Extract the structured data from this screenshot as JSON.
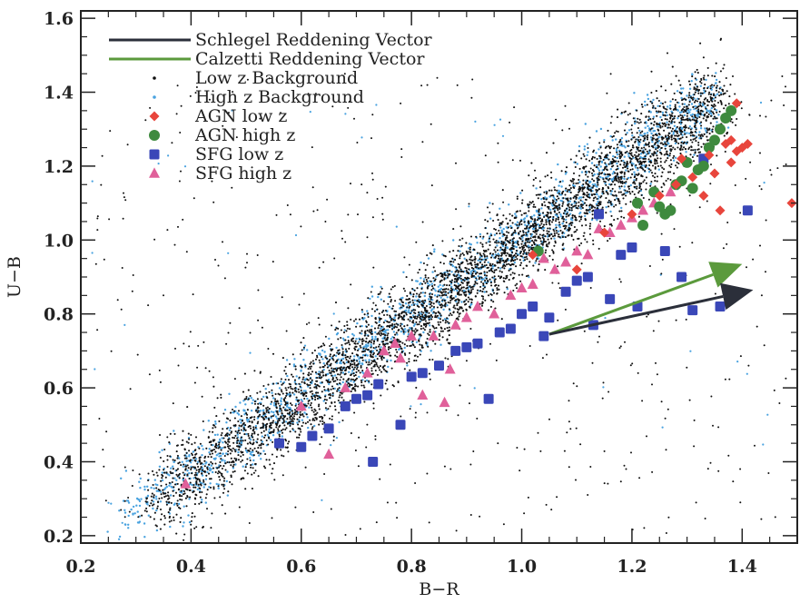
{
  "chart_data": {
    "type": "scatter",
    "xlabel": "B−R",
    "ylabel": "U−B",
    "xlim": [
      0.2,
      1.5
    ],
    "ylim": [
      0.18,
      1.62
    ],
    "xticks": [
      "0.2",
      "0.4",
      "0.6",
      "0.8",
      "1.0",
      "1.2",
      "1.4"
    ],
    "yticks": [
      "0.2",
      "0.4",
      "0.6",
      "0.8",
      "1.0",
      "1.2",
      "1.4",
      "1.6"
    ],
    "grid": false,
    "legend_position": "top-left",
    "colors": {
      "schlegel": "#2b2f3a",
      "calzetti": "#5b9a3c",
      "low_z_bg": "#111111",
      "high_z_bg": "#4aa3e0",
      "agn_low_z": "#e8453c",
      "agn_high_z": "#3e8a3e",
      "sfg_low_z": "#3a47b8",
      "sfg_high_z": "#e0609a"
    },
    "series": [
      {
        "name": "Schlegel Reddening Vector",
        "kind": "vector",
        "marker": "line",
        "points": [
          [
            1.05,
            0.745
          ],
          [
            1.42,
            0.865
          ]
        ]
      },
      {
        "name": "Calzetti Reddening Vector",
        "kind": "vector",
        "marker": "line",
        "points": [
          [
            1.05,
            0.745
          ],
          [
            1.4,
            0.935
          ]
        ]
      },
      {
        "name": "Low z Background",
        "kind": "background",
        "marker": "dot",
        "locus": {
          "x0": 0.33,
          "y0": 0.28,
          "x1": 1.36,
          "y1": 1.38,
          "scatter_y": 0.055,
          "count": 4200,
          "field_count": 520
        }
      },
      {
        "name": "High z Background",
        "kind": "background",
        "marker": "dot",
        "locus": {
          "x0": 0.28,
          "y0": 0.24,
          "x1": 1.35,
          "y1": 1.39,
          "scatter_y": 0.045,
          "count": 1700,
          "field_count": 60
        }
      },
      {
        "name": "AGN low z",
        "kind": "points",
        "marker": "diamond",
        "points": [
          [
            1.02,
            0.96
          ],
          [
            1.1,
            0.92
          ],
          [
            1.15,
            1.02
          ],
          [
            1.2,
            1.07
          ],
          [
            1.25,
            1.12
          ],
          [
            1.28,
            1.15
          ],
          [
            1.29,
            1.22
          ],
          [
            1.31,
            1.17
          ],
          [
            1.33,
            1.12
          ],
          [
            1.34,
            1.23
          ],
          [
            1.35,
            1.18
          ],
          [
            1.36,
            1.08
          ],
          [
            1.37,
            1.26
          ],
          [
            1.38,
            1.27
          ],
          [
            1.38,
            1.21
          ],
          [
            1.39,
            1.24
          ],
          [
            1.4,
            1.25
          ],
          [
            1.41,
            1.26
          ],
          [
            1.39,
            1.37
          ],
          [
            1.49,
            1.1
          ]
        ]
      },
      {
        "name": "AGN high z",
        "kind": "points",
        "marker": "circle",
        "points": [
          [
            1.03,
            0.97
          ],
          [
            1.21,
            1.1
          ],
          [
            1.22,
            1.04
          ],
          [
            1.24,
            1.13
          ],
          [
            1.25,
            1.09
          ],
          [
            1.26,
            1.07
          ],
          [
            1.27,
            1.08
          ],
          [
            1.28,
            1.15
          ],
          [
            1.29,
            1.16
          ],
          [
            1.3,
            1.21
          ],
          [
            1.31,
            1.14
          ],
          [
            1.32,
            1.19
          ],
          [
            1.33,
            1.2
          ],
          [
            1.34,
            1.25
          ],
          [
            1.35,
            1.27
          ],
          [
            1.36,
            1.3
          ],
          [
            1.37,
            1.33
          ],
          [
            1.38,
            1.35
          ]
        ]
      },
      {
        "name": "SFG low z",
        "kind": "points",
        "marker": "square",
        "points": [
          [
            0.56,
            0.45
          ],
          [
            0.6,
            0.44
          ],
          [
            0.62,
            0.47
          ],
          [
            0.65,
            0.49
          ],
          [
            0.68,
            0.55
          ],
          [
            0.7,
            0.57
          ],
          [
            0.72,
            0.58
          ],
          [
            0.73,
            0.4
          ],
          [
            0.74,
            0.61
          ],
          [
            0.78,
            0.5
          ],
          [
            0.8,
            0.63
          ],
          [
            0.82,
            0.64
          ],
          [
            0.85,
            0.66
          ],
          [
            0.88,
            0.7
          ],
          [
            0.9,
            0.71
          ],
          [
            0.92,
            0.72
          ],
          [
            0.94,
            0.57
          ],
          [
            0.96,
            0.75
          ],
          [
            0.98,
            0.76
          ],
          [
            1.0,
            0.8
          ],
          [
            1.02,
            0.82
          ],
          [
            1.04,
            0.74
          ],
          [
            1.05,
            0.79
          ],
          [
            1.08,
            0.86
          ],
          [
            1.1,
            0.89
          ],
          [
            1.12,
            0.9
          ],
          [
            1.13,
            0.77
          ],
          [
            1.14,
            1.07
          ],
          [
            1.16,
            0.84
          ],
          [
            1.18,
            0.96
          ],
          [
            1.2,
            0.98
          ],
          [
            1.21,
            0.82
          ],
          [
            1.26,
            0.97
          ],
          [
            1.29,
            0.9
          ],
          [
            1.31,
            0.81
          ],
          [
            1.33,
            1.22
          ],
          [
            1.36,
            0.82
          ],
          [
            1.41,
            1.08
          ]
        ]
      },
      {
        "name": "SFG high z",
        "kind": "points",
        "marker": "triangle",
        "points": [
          [
            0.39,
            0.34
          ],
          [
            0.6,
            0.55
          ],
          [
            0.65,
            0.42
          ],
          [
            0.68,
            0.6
          ],
          [
            0.72,
            0.64
          ],
          [
            0.75,
            0.7
          ],
          [
            0.77,
            0.72
          ],
          [
            0.78,
            0.68
          ],
          [
            0.8,
            0.74
          ],
          [
            0.82,
            0.58
          ],
          [
            0.84,
            0.74
          ],
          [
            0.86,
            0.56
          ],
          [
            0.87,
            0.65
          ],
          [
            0.88,
            0.77
          ],
          [
            0.9,
            0.79
          ],
          [
            0.92,
            0.82
          ],
          [
            0.95,
            0.8
          ],
          [
            0.98,
            0.85
          ],
          [
            1.0,
            0.87
          ],
          [
            1.02,
            0.88
          ],
          [
            1.04,
            0.95
          ],
          [
            1.06,
            0.92
          ],
          [
            1.08,
            0.94
          ],
          [
            1.1,
            0.97
          ],
          [
            1.12,
            0.96
          ],
          [
            1.14,
            1.03
          ],
          [
            1.16,
            1.02
          ],
          [
            1.18,
            1.04
          ],
          [
            1.2,
            1.06
          ],
          [
            1.22,
            1.08
          ],
          [
            1.24,
            1.1
          ],
          [
            1.27,
            1.13
          ]
        ]
      }
    ]
  }
}
